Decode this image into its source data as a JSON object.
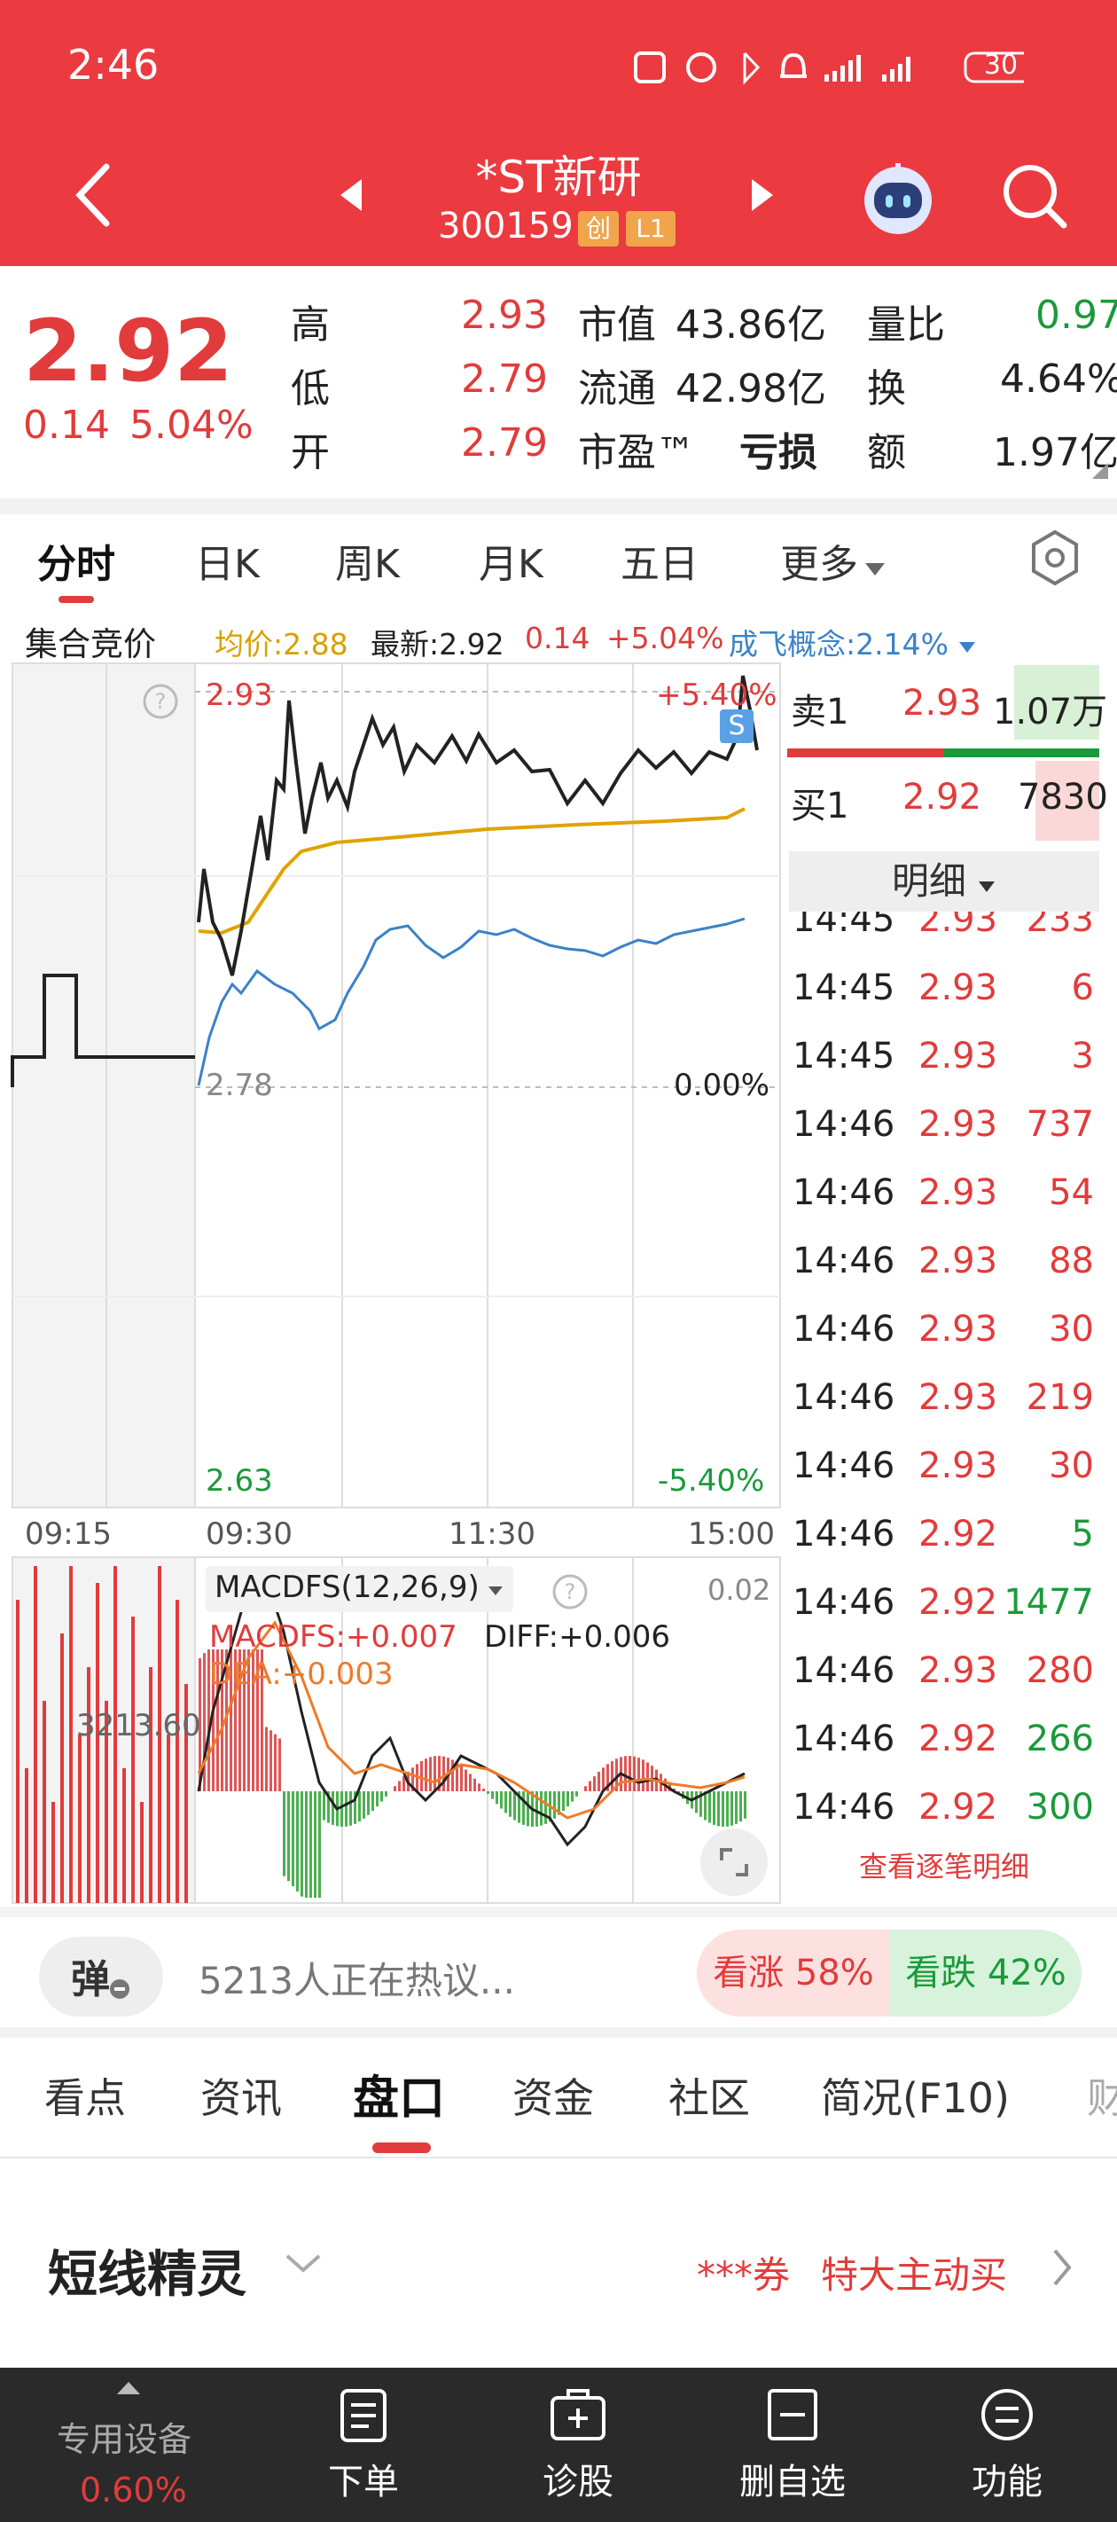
{
  "status_bar": {
    "time": "2:46",
    "battery": "30"
  },
  "header": {
    "stock_name": "*ST新研",
    "stock_code": "300159",
    "badge_chuang": "创",
    "badge_level": "L1"
  },
  "quote": {
    "price": "2.92",
    "change": "0.14",
    "change_pct": "5.04%",
    "high_label": "高",
    "high": "2.93",
    "low_label": "低",
    "low": "2.79",
    "open_label": "开",
    "open": "2.79",
    "mktcap_label": "市值",
    "mktcap": "43.86亿",
    "float_label": "流通",
    "float": "42.98亿",
    "pe_label": "市盈™",
    "pe": "亏损",
    "vol_ratio_label": "量比",
    "vol_ratio": "0.97",
    "turnover_label": "换",
    "turnover": "4.64%",
    "amount_label": "额",
    "amount": "1.97亿"
  },
  "chart_tabs": [
    "分时",
    "日K",
    "周K",
    "月K",
    "五日",
    "更多"
  ],
  "info_line": {
    "auction": "集合竞价",
    "avg": "均价:2.88",
    "latest": "最新:2.92",
    "chg": "0.14",
    "pct": "+5.04%",
    "concept": "成飞概念:2.14%"
  },
  "intraday": {
    "top_price": "2.93",
    "top_pct": "+5.40%",
    "mid_price": "2.78",
    "mid_pct": "0.00%",
    "bottom_price": "2.63",
    "bottom_pct": "-5.40%",
    "s_marker": "S",
    "times": [
      "09:15",
      "09:30",
      "11:30",
      "15:00"
    ]
  },
  "macd": {
    "title": "MACDFS(12,26,9)",
    "top_value": "0.02",
    "macdfs": "MACDFS:+0.007",
    "diff": "DIFF:+0.006",
    "dea": "DEA:+0.003",
    "volume": "3213.60"
  },
  "order_book": {
    "sell1_label": "卖1",
    "sell1_price": "2.93",
    "sell1_vol": "1.07万",
    "buy1_label": "买1",
    "buy1_price": "2.92",
    "buy1_vol": "7830",
    "detail_label": "明细"
  },
  "trades": [
    {
      "time": "14:45",
      "price": "2.93",
      "vol": "233",
      "dir": "up"
    },
    {
      "time": "14:45",
      "price": "2.93",
      "vol": "6",
      "dir": "up"
    },
    {
      "time": "14:45",
      "price": "2.93",
      "vol": "3",
      "dir": "up"
    },
    {
      "time": "14:46",
      "price": "2.93",
      "vol": "737",
      "dir": "up"
    },
    {
      "time": "14:46",
      "price": "2.93",
      "vol": "54",
      "dir": "up"
    },
    {
      "time": "14:46",
      "price": "2.93",
      "vol": "88",
      "dir": "up"
    },
    {
      "time": "14:46",
      "price": "2.93",
      "vol": "30",
      "dir": "up"
    },
    {
      "time": "14:46",
      "price": "2.93",
      "vol": "219",
      "dir": "up"
    },
    {
      "time": "14:46",
      "price": "2.93",
      "vol": "30",
      "dir": "up"
    },
    {
      "time": "14:46",
      "price": "2.92",
      "vol": "5",
      "dir": "down"
    },
    {
      "time": "14:46",
      "price": "2.92",
      "vol": "1477",
      "dir": "down"
    },
    {
      "time": "14:46",
      "price": "2.93",
      "vol": "280",
      "dir": "up"
    },
    {
      "time": "14:46",
      "price": "2.92",
      "vol": "266",
      "dir": "down"
    },
    {
      "time": "14:46",
      "price": "2.92",
      "vol": "300",
      "dir": "down"
    }
  ],
  "view_all_trades": "查看逐笔明细",
  "social": {
    "danmu": "弹",
    "discussing": "5213人正在热议...",
    "bull": "看涨 58%",
    "bear": "看跌 42%"
  },
  "sub_tabs": [
    "看点",
    "资讯",
    "盘口",
    "资金",
    "社区",
    "简况(F10)",
    "财"
  ],
  "sprite": {
    "title": "短线精灵",
    "broker": "***券",
    "action": "特大主动买"
  },
  "bottom_nav": {
    "device_label": "专用设备",
    "device_pct": "0.60%",
    "order": "下单",
    "diagnose": "诊股",
    "remove": "删自选",
    "function": "功能"
  },
  "colors": {
    "header_red": "#eb3a40",
    "up_red": "#e23b3b",
    "down_green": "#1a9a3a",
    "avg_line": "#e0a300",
    "index_line": "#3b82c8",
    "bottom_bar": "#2a2a2a"
  }
}
